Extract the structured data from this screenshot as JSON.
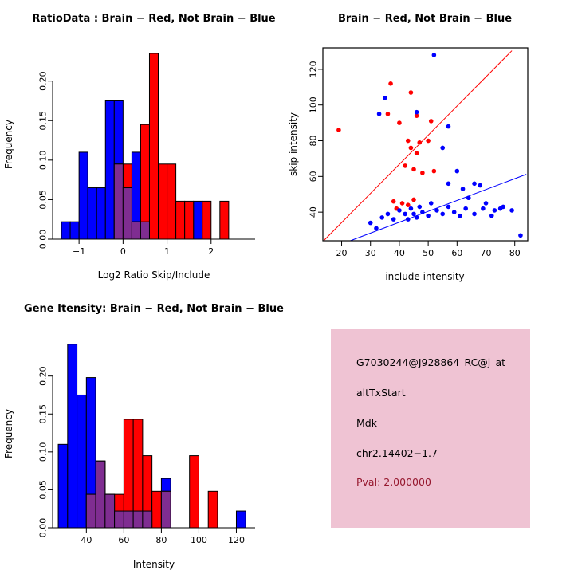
{
  "colors": {
    "red": "#FF0000",
    "blue": "#0000FF",
    "overlap": "#7F2D91",
    "axis": "#000000",
    "background": "#FFFFFF"
  },
  "panels": {
    "ratio_hist": {
      "title": "RatioData : Brain − Red, Not Brain − Blue",
      "xlabel": "Log2 Ratio Skip/Include",
      "ylabel": "Frequency"
    },
    "scatter": {
      "title": "Brain − Red, Not Brain − Blue",
      "xlabel": "include intensity",
      "ylabel": "skip intensity"
    },
    "gene_hist": {
      "title": "Gene Itensity: Brain − Red, Not Brain − Blue",
      "xlabel": "Intensity",
      "ylabel": "Frequency"
    },
    "info_box": {
      "probe": "G7030244@J928864_RC@j_at",
      "event_type": "altTxStart",
      "gene": "Mdk",
      "locus": "chr2.14402−1.7",
      "pval": "Pval: 2.000000",
      "bg_color": "#EFC3D3",
      "pval_color": "#96182E"
    }
  },
  "chart_data": [
    {
      "id": "ratio_hist",
      "type": "bar",
      "title": "RatioData : Brain − Red, Not Brain − Blue",
      "xlabel": "Log2 Ratio Skip/Include",
      "ylabel": "Frequency",
      "xlim": [
        -1.6,
        3.0
      ],
      "ylim": [
        0,
        0.24
      ],
      "bin_width": 0.2,
      "xticks": [
        -1,
        0,
        1,
        2
      ],
      "xtick_labels": [
        "−1",
        "0",
        "1",
        "2"
      ],
      "yticks": [
        0,
        0.05,
        0.1,
        0.15,
        0.2
      ],
      "ytick_labels": [
        "0.00",
        "0.05",
        "0.10",
        "0.15",
        "0.20"
      ],
      "margins": {
        "l": 66,
        "t": 62,
        "r": 40,
        "b": 60
      },
      "legend": "grid off, no legend, overlap of red and blue histograms renders purple",
      "series": [
        {
          "name": "not_brain_blue",
          "color": "blue",
          "bins": [
            [
              -1.4,
              0.022
            ],
            [
              -1.2,
              0.022
            ],
            [
              -1.0,
              0.11
            ],
            [
              -0.8,
              0.065
            ],
            [
              -0.6,
              0.065
            ],
            [
              -0.4,
              0.175
            ],
            [
              -0.2,
              0.175
            ],
            [
              0.0,
              0.065
            ],
            [
              0.2,
              0.11
            ],
            [
              0.4,
              0.022
            ],
            [
              1.6,
              0.048
            ]
          ]
        },
        {
          "name": "brain_red",
          "color": "red",
          "bins": [
            [
              -0.2,
              0.095
            ],
            [
              0.0,
              0.095
            ],
            [
              0.2,
              0.022
            ],
            [
              0.4,
              0.145
            ],
            [
              0.6,
              0.235
            ],
            [
              0.8,
              0.095
            ],
            [
              1.0,
              0.095
            ],
            [
              1.2,
              0.048
            ],
            [
              1.4,
              0.048
            ],
            [
              1.8,
              0.048
            ],
            [
              2.2,
              0.048
            ]
          ]
        }
      ]
    },
    {
      "id": "scatter",
      "type": "scatter",
      "title": "Brain − Red, Not Brain − Blue",
      "xlabel": "include intensity",
      "ylabel": "skip intensity",
      "frame": true,
      "xlim": [
        13.5,
        84.5
      ],
      "ylim": [
        24,
        132
      ],
      "xticks": [
        20,
        30,
        40,
        50,
        60,
        70,
        80
      ],
      "xtick_labels": [
        "20",
        "30",
        "40",
        "50",
        "60",
        "70",
        "80"
      ],
      "yticks": [
        40,
        60,
        80,
        100,
        120
      ],
      "ytick_labels": [
        "40",
        "60",
        "80",
        "100",
        "120"
      ],
      "margins": {
        "l": 45,
        "t": 60,
        "r": 58,
        "b": 58
      },
      "lines": [
        {
          "color": "red",
          "x1": 14,
          "y1": 24.4,
          "x2": 79,
          "y2": 130.4
        },
        {
          "color": "blue",
          "x1": 23,
          "y1": 24,
          "x2": 84,
          "y2": 61.2
        }
      ],
      "series": [
        {
          "name": "brain_red",
          "color": "red",
          "points": [
            [
              19,
              86
            ],
            [
              37,
              112
            ],
            [
              44,
              107
            ],
            [
              36,
              95
            ],
            [
              46,
              94
            ],
            [
              40,
              90
            ],
            [
              51,
              91
            ],
            [
              43,
              80
            ],
            [
              47,
              79
            ],
            [
              50,
              80
            ],
            [
              44,
              76
            ],
            [
              46,
              73
            ],
            [
              42,
              66
            ],
            [
              45,
              64
            ],
            [
              48,
              62
            ],
            [
              52,
              63
            ],
            [
              38,
              46
            ],
            [
              41,
              45
            ],
            [
              43,
              44
            ],
            [
              45,
              47
            ],
            [
              39,
              42
            ]
          ]
        },
        {
          "name": "not_brain_blue",
          "color": "blue",
          "points": [
            [
              52,
              128
            ],
            [
              35,
              104
            ],
            [
              33,
              95
            ],
            [
              57,
              88
            ],
            [
              46,
              96
            ],
            [
              55,
              76
            ],
            [
              60,
              63
            ],
            [
              57,
              56
            ],
            [
              62,
              53
            ],
            [
              66,
              56
            ],
            [
              68,
              55
            ],
            [
              64,
              48
            ],
            [
              70,
              45
            ],
            [
              73,
              41
            ],
            [
              76,
              43
            ],
            [
              79,
              41
            ],
            [
              82,
              27
            ],
            [
              30,
              34
            ],
            [
              32,
              31
            ],
            [
              34,
              37
            ],
            [
              36,
              39
            ],
            [
              38,
              36
            ],
            [
              40,
              41
            ],
            [
              42,
              39
            ],
            [
              43,
              36
            ],
            [
              44,
              42
            ],
            [
              45,
              39
            ],
            [
              46,
              37
            ],
            [
              47,
              43
            ],
            [
              48,
              40
            ],
            [
              50,
              38
            ],
            [
              51,
              45
            ],
            [
              53,
              41
            ],
            [
              55,
              39
            ],
            [
              57,
              43
            ],
            [
              59,
              40
            ],
            [
              61,
              38
            ],
            [
              63,
              42
            ],
            [
              66,
              39
            ],
            [
              69,
              42
            ],
            [
              72,
              38
            ],
            [
              75,
              42
            ]
          ]
        }
      ]
    },
    {
      "id": "gene_hist",
      "type": "bar",
      "title": "Gene Itensity: Brain − Red, Not Brain − Blue",
      "xlabel": "Intensity",
      "ylabel": "Frequency",
      "xlim": [
        22,
        130
      ],
      "ylim": [
        0,
        0.248
      ],
      "bin_width": 5,
      "xticks": [
        40,
        60,
        80,
        100,
        120
      ],
      "xtick_labels": [
        "40",
        "60",
        "80",
        "100",
        "120"
      ],
      "yticks": [
        0,
        0.05,
        0.1,
        0.15,
        0.2
      ],
      "ytick_labels": [
        "0.00",
        "0.05",
        "0.10",
        "0.15",
        "0.20"
      ],
      "margins": {
        "l": 66,
        "t": 66,
        "r": 40,
        "b": 58
      },
      "series": [
        {
          "name": "not_brain_blue",
          "color": "blue",
          "bins": [
            [
              25,
              0.11
            ],
            [
              30,
              0.242
            ],
            [
              35,
              0.175
            ],
            [
              40,
              0.198
            ],
            [
              45,
              0.088
            ],
            [
              50,
              0.044
            ],
            [
              55,
              0.022
            ],
            [
              60,
              0.022
            ],
            [
              65,
              0.022
            ],
            [
              70,
              0.022
            ],
            [
              80,
              0.065
            ],
            [
              120,
              0.022
            ]
          ]
        },
        {
          "name": "brain_red",
          "color": "red",
          "bins": [
            [
              40,
              0.044
            ],
            [
              45,
              0.088
            ],
            [
              50,
              0.044
            ],
            [
              55,
              0.044
            ],
            [
              60,
              0.143
            ],
            [
              65,
              0.143
            ],
            [
              70,
              0.095
            ],
            [
              75,
              0.048
            ],
            [
              80,
              0.048
            ],
            [
              95,
              0.095
            ],
            [
              105,
              0.048
            ]
          ]
        }
      ]
    }
  ]
}
